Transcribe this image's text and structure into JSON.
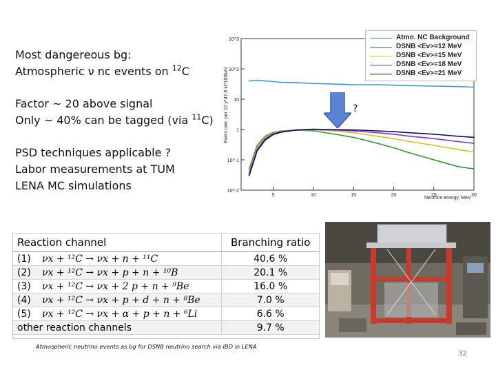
{
  "text_block": {
    "line1": "Most dangereous bg:",
    "line2_pre": "Atmospheric ν nc events on ",
    "line2_sup": "12",
    "line2_post": "C",
    "line3": "Factor ~ 20 above signal",
    "line4_pre": "Only ~ 40% can be tagged (via ",
    "line4_sup": "11",
    "line4_post": "C)",
    "line5": "PSD techniques applicable ?",
    "line6": "Labor measurements at TUM",
    "line7": "LENA MC simulations"
  },
  "question_mark": "?",
  "chart_data": {
    "type": "line",
    "xlabel": "Neutrino energy, MeV",
    "ylabel": "Event rate, per 10 y*47.8 kt*100keV",
    "xlim": [
      1,
      30
    ],
    "ylim": [
      0.01,
      1000
    ],
    "yscale": "log",
    "xticks": [
      "5",
      "10",
      "15",
      "20",
      "25",
      "30"
    ],
    "yticks": [
      "10^3",
      "10^2",
      "10",
      "1",
      "10^-1",
      "10^-2"
    ],
    "x": [
      2,
      3,
      4,
      5,
      6,
      8,
      10,
      12,
      15,
      18,
      20,
      22,
      25,
      28,
      30
    ],
    "series": [
      {
        "name": "Atmo. NC Background",
        "color": "#3a9ad9",
        "values": [
          40,
          42,
          40,
          38,
          36,
          35,
          33,
          32,
          30,
          30,
          29,
          28,
          27,
          26,
          25
        ]
      },
      {
        "name": "DSNB <Eν>=12 MeV",
        "color": "#2a9a2a",
        "values": [
          0.05,
          0.3,
          0.6,
          0.8,
          0.9,
          0.95,
          0.9,
          0.75,
          0.55,
          0.35,
          0.25,
          0.17,
          0.1,
          0.06,
          0.05
        ]
      },
      {
        "name": "DSNB <Eν>=15 MeV",
        "color": "#c8c820",
        "values": [
          0.04,
          0.25,
          0.55,
          0.75,
          0.88,
          0.97,
          0.97,
          0.92,
          0.78,
          0.6,
          0.5,
          0.4,
          0.3,
          0.22,
          0.18
        ]
      },
      {
        "name": "DSNB <Eν>=18 MeV",
        "color": "#8a2be2",
        "values": [
          0.035,
          0.22,
          0.5,
          0.72,
          0.85,
          0.98,
          1.0,
          0.98,
          0.9,
          0.78,
          0.7,
          0.6,
          0.5,
          0.4,
          0.35
        ]
      },
      {
        "name": "DSNB <Eν>=21 MeV",
        "color": "#101060",
        "values": [
          0.03,
          0.2,
          0.45,
          0.68,
          0.82,
          0.97,
          1.02,
          1.0,
          0.97,
          0.9,
          0.85,
          0.78,
          0.7,
          0.6,
          0.55
        ]
      }
    ]
  },
  "table": {
    "headers": [
      "Reaction channel",
      "Branching ratio"
    ],
    "rows": [
      {
        "idx": "(1)",
        "eq": "νx + ¹²C → νx + n + ¹¹C",
        "ratio": "40.6 %"
      },
      {
        "idx": "(2)",
        "eq": "νx + ¹²C → νx + p + n + ¹⁰B",
        "ratio": "20.1 %"
      },
      {
        "idx": "(3)",
        "eq": "νx + ¹²C → νx + 2 p + n + ⁹Be",
        "ratio": "16.0 %"
      },
      {
        "idx": "(4)",
        "eq": "νx + ¹²C → νx + p + d + n + ⁸Be",
        "ratio": "7.0 %"
      },
      {
        "idx": "(5)",
        "eq": "νx + ¹²C → νx + α + p + n + ⁶Li",
        "ratio": "6.6 %"
      }
    ],
    "other_label": "other reaction channels",
    "other_ratio": "9.7 %"
  },
  "caption": "Atmospheric neutrino events as bg for DSNB neutrino search via IBD in LENA",
  "page_number": "32"
}
